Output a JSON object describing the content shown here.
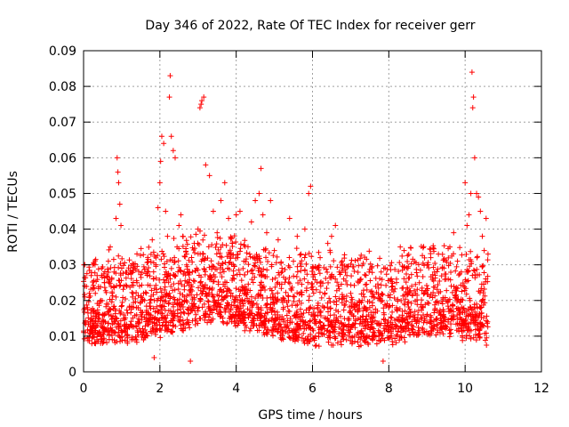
{
  "chart_data": {
    "type": "scatter",
    "title": "Day 346 of 2022, Rate Of TEC Index for receiver gerr",
    "xlabel": "GPS time / hours",
    "ylabel": "ROTI / TECUs",
    "xlim": [
      0,
      12
    ],
    "ylim": [
      0,
      0.09
    ],
    "x_ticks": [
      "0",
      "2",
      "4",
      "6",
      "8",
      "10",
      "12"
    ],
    "y_ticks": [
      "0",
      "0.01",
      "0.02",
      "0.03",
      "0.04",
      "0.05",
      "0.06",
      "0.07",
      "0.08",
      "0.09"
    ],
    "x_tick_values": [
      0,
      2,
      4,
      6,
      8,
      10,
      12
    ],
    "y_tick_values": [
      0,
      0.01,
      0.02,
      0.03,
      0.04,
      0.05,
      0.06,
      0.07,
      0.08,
      0.09
    ],
    "grid": true,
    "marker": "+",
    "color": "#ff0000",
    "data_x_range": [
      0,
      10.6
    ],
    "series": [
      {
        "name": "ROTI",
        "points": [
          [
            0.05,
            0.014
          ],
          [
            0.1,
            0.018
          ],
          [
            0.15,
            0.022
          ],
          [
            0.2,
            0.027
          ],
          [
            0.25,
            0.012
          ],
          [
            0.3,
            0.03
          ],
          [
            0.35,
            0.009
          ],
          [
            0.4,
            0.016
          ],
          [
            0.45,
            0.02
          ],
          [
            0.5,
            0.008
          ],
          [
            0.55,
            0.025
          ],
          [
            0.6,
            0.019
          ],
          [
            0.65,
            0.031
          ],
          [
            0.7,
            0.035
          ],
          [
            0.75,
            0.022
          ],
          [
            0.8,
            0.028
          ],
          [
            0.85,
            0.043
          ],
          [
            0.88,
            0.06
          ],
          [
            0.9,
            0.056
          ],
          [
            0.92,
            0.053
          ],
          [
            0.95,
            0.047
          ],
          [
            0.98,
            0.041
          ],
          [
            1.0,
            0.029
          ],
          [
            1.05,
            0.015
          ],
          [
            1.1,
            0.012
          ],
          [
            1.2,
            0.018
          ],
          [
            1.3,
            0.022
          ],
          [
            1.4,
            0.025
          ],
          [
            1.5,
            0.016
          ],
          [
            1.6,
            0.02
          ],
          [
            1.7,
            0.028
          ],
          [
            1.8,
            0.037
          ],
          [
            1.85,
            0.004
          ],
          [
            1.9,
            0.03
          ],
          [
            1.95,
            0.046
          ],
          [
            2.0,
            0.053
          ],
          [
            2.02,
            0.059
          ],
          [
            2.05,
            0.066
          ],
          [
            2.1,
            0.064
          ],
          [
            2.15,
            0.045
          ],
          [
            2.2,
            0.038
          ],
          [
            2.25,
            0.077
          ],
          [
            2.27,
            0.083
          ],
          [
            2.3,
            0.066
          ],
          [
            2.35,
            0.062
          ],
          [
            2.4,
            0.06
          ],
          [
            2.45,
            0.035
          ],
          [
            2.5,
            0.041
          ],
          [
            2.55,
            0.044
          ],
          [
            2.6,
            0.038
          ],
          [
            2.7,
            0.033
          ],
          [
            2.8,
            0.003
          ],
          [
            2.85,
            0.028
          ],
          [
            2.9,
            0.036
          ],
          [
            3.0,
            0.04
          ],
          [
            3.05,
            0.074
          ],
          [
            3.08,
            0.075
          ],
          [
            3.1,
            0.076
          ],
          [
            3.15,
            0.077
          ],
          [
            3.2,
            0.058
          ],
          [
            3.3,
            0.055
          ],
          [
            3.4,
            0.045
          ],
          [
            3.5,
            0.039
          ],
          [
            3.6,
            0.048
          ],
          [
            3.7,
            0.053
          ],
          [
            3.8,
            0.043
          ],
          [
            3.9,
            0.036
          ],
          [
            4.0,
            0.044
          ],
          [
            4.1,
            0.045
          ],
          [
            4.2,
            0.031
          ],
          [
            4.3,
            0.028
          ],
          [
            4.4,
            0.042
          ],
          [
            4.5,
            0.048
          ],
          [
            4.6,
            0.05
          ],
          [
            4.65,
            0.057
          ],
          [
            4.7,
            0.044
          ],
          [
            4.8,
            0.039
          ],
          [
            4.9,
            0.048
          ],
          [
            5.0,
            0.034
          ],
          [
            5.1,
            0.037
          ],
          [
            5.2,
            0.029
          ],
          [
            5.3,
            0.026
          ],
          [
            5.4,
            0.043
          ],
          [
            5.5,
            0.031
          ],
          [
            5.6,
            0.038
          ],
          [
            5.7,
            0.033
          ],
          [
            5.8,
            0.04
          ],
          [
            5.9,
            0.05
          ],
          [
            5.95,
            0.052
          ],
          [
            6.0,
            0.029
          ],
          [
            6.1,
            0.023
          ],
          [
            6.2,
            0.032
          ],
          [
            6.3,
            0.018
          ],
          [
            6.4,
            0.036
          ],
          [
            6.5,
            0.038
          ],
          [
            6.6,
            0.041
          ],
          [
            6.7,
            0.028
          ],
          [
            6.8,
            0.021
          ],
          [
            6.9,
            0.027
          ],
          [
            7.0,
            0.022
          ],
          [
            7.1,
            0.019
          ],
          [
            7.2,
            0.025
          ],
          [
            7.3,
            0.02
          ],
          [
            7.4,
            0.014
          ],
          [
            7.5,
            0.018
          ],
          [
            7.6,
            0.021
          ],
          [
            7.7,
            0.017
          ],
          [
            7.8,
            0.028
          ],
          [
            7.85,
            0.003
          ],
          [
            7.9,
            0.013
          ],
          [
            8.0,
            0.018
          ],
          [
            8.1,
            0.024
          ],
          [
            8.2,
            0.026
          ],
          [
            8.3,
            0.035
          ],
          [
            8.4,
            0.034
          ],
          [
            8.5,
            0.029
          ],
          [
            8.6,
            0.024
          ],
          [
            8.7,
            0.022
          ],
          [
            8.8,
            0.025
          ],
          [
            8.9,
            0.018
          ],
          [
            9.0,
            0.03
          ],
          [
            9.1,
            0.032
          ],
          [
            9.2,
            0.028
          ],
          [
            9.3,
            0.033
          ],
          [
            9.4,
            0.029
          ],
          [
            9.5,
            0.026
          ],
          [
            9.6,
            0.035
          ],
          [
            9.7,
            0.039
          ],
          [
            9.8,
            0.031
          ],
          [
            9.9,
            0.028
          ],
          [
            10.0,
            0.053
          ],
          [
            10.05,
            0.041
          ],
          [
            10.1,
            0.044
          ],
          [
            10.15,
            0.05
          ],
          [
            10.18,
            0.084
          ],
          [
            10.2,
            0.074
          ],
          [
            10.22,
            0.077
          ],
          [
            10.25,
            0.06
          ],
          [
            10.3,
            0.05
          ],
          [
            10.35,
            0.049
          ],
          [
            10.4,
            0.045
          ],
          [
            10.45,
            0.038
          ],
          [
            10.5,
            0.034
          ],
          [
            10.55,
            0.043
          ],
          [
            10.6,
            0.033
          ]
        ]
      }
    ]
  }
}
